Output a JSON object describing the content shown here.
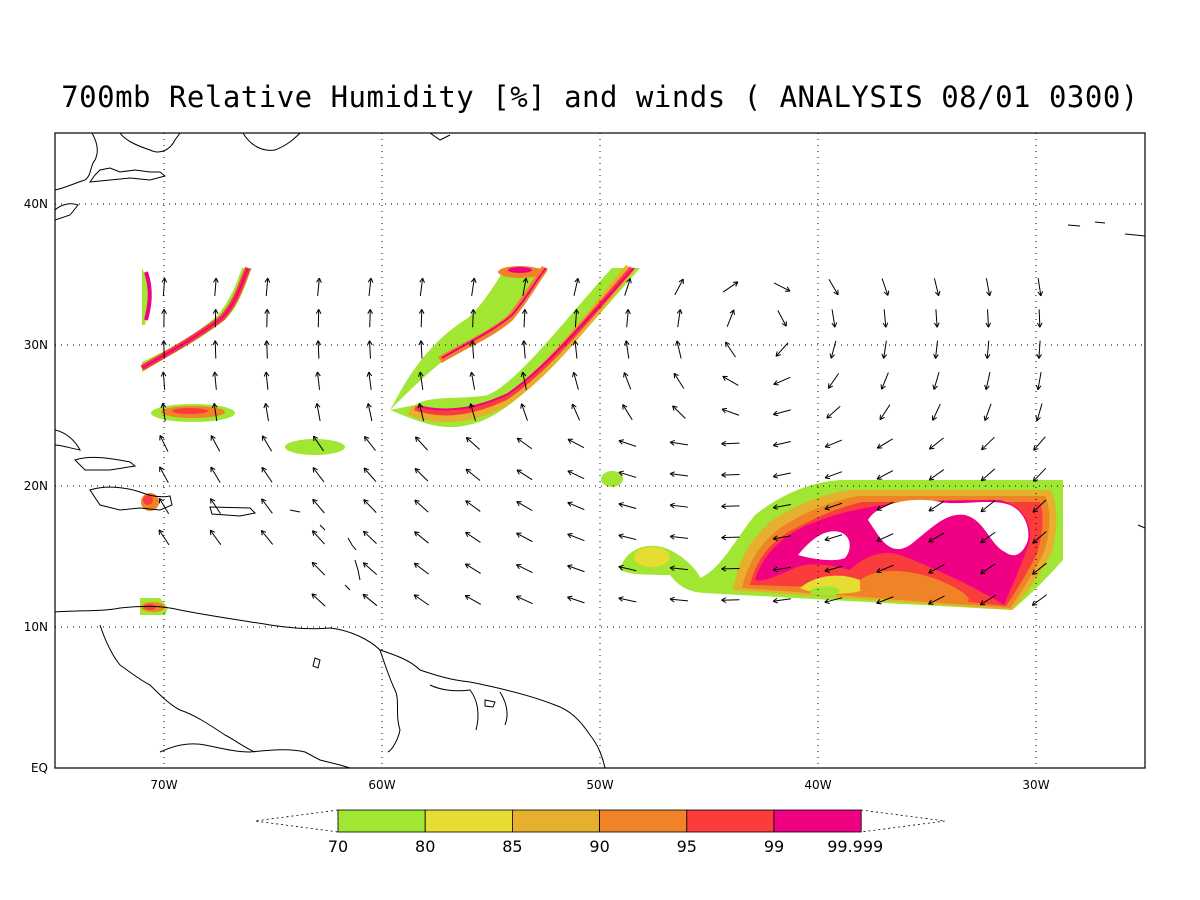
{
  "title": "700mb Relative Humidity [%] and winds ( ANALYSIS 08/01 0300)",
  "map": {
    "lon_range": [
      -75,
      -25
    ],
    "lat_range": [
      0,
      45
    ],
    "lon_ticks": [
      {
        "lon": -70,
        "label": "70W"
      },
      {
        "lon": -60,
        "label": "60W"
      },
      {
        "lon": -50,
        "label": "50W"
      },
      {
        "lon": -40,
        "label": "40W"
      },
      {
        "lon": -30,
        "label": "30W"
      }
    ],
    "lat_ticks": [
      {
        "lat": 40,
        "label": "40N"
      },
      {
        "lat": 30,
        "label": "30N"
      },
      {
        "lat": 20,
        "label": "20N"
      },
      {
        "lat": 10,
        "label": "10N"
      },
      {
        "lat": 0,
        "label": "EQ"
      }
    ],
    "grid": "dotted"
  },
  "colorbar": {
    "levels": [
      "70",
      "80",
      "85",
      "90",
      "95",
      "99",
      "99.999"
    ],
    "colors": [
      "#a0e632",
      "#e6dc32",
      "#e6af2d",
      "#f08228",
      "#fa3c3c",
      "#f00082"
    ]
  },
  "chart_data": {
    "type": "heatmap",
    "title": "700mb Relative Humidity [%] and winds ( ANALYSIS 08/01 0300)",
    "variable": "Relative Humidity [%]",
    "level": "700mb",
    "xlabel": "",
    "ylabel": "",
    "x_ticks": [
      "70W",
      "60W",
      "50W",
      "40W",
      "30W"
    ],
    "y_ticks": [
      "EQ",
      "10N",
      "20N",
      "30N",
      "40N"
    ],
    "color_levels": [
      70,
      80,
      85,
      90,
      95,
      99,
      99.999
    ]
  }
}
